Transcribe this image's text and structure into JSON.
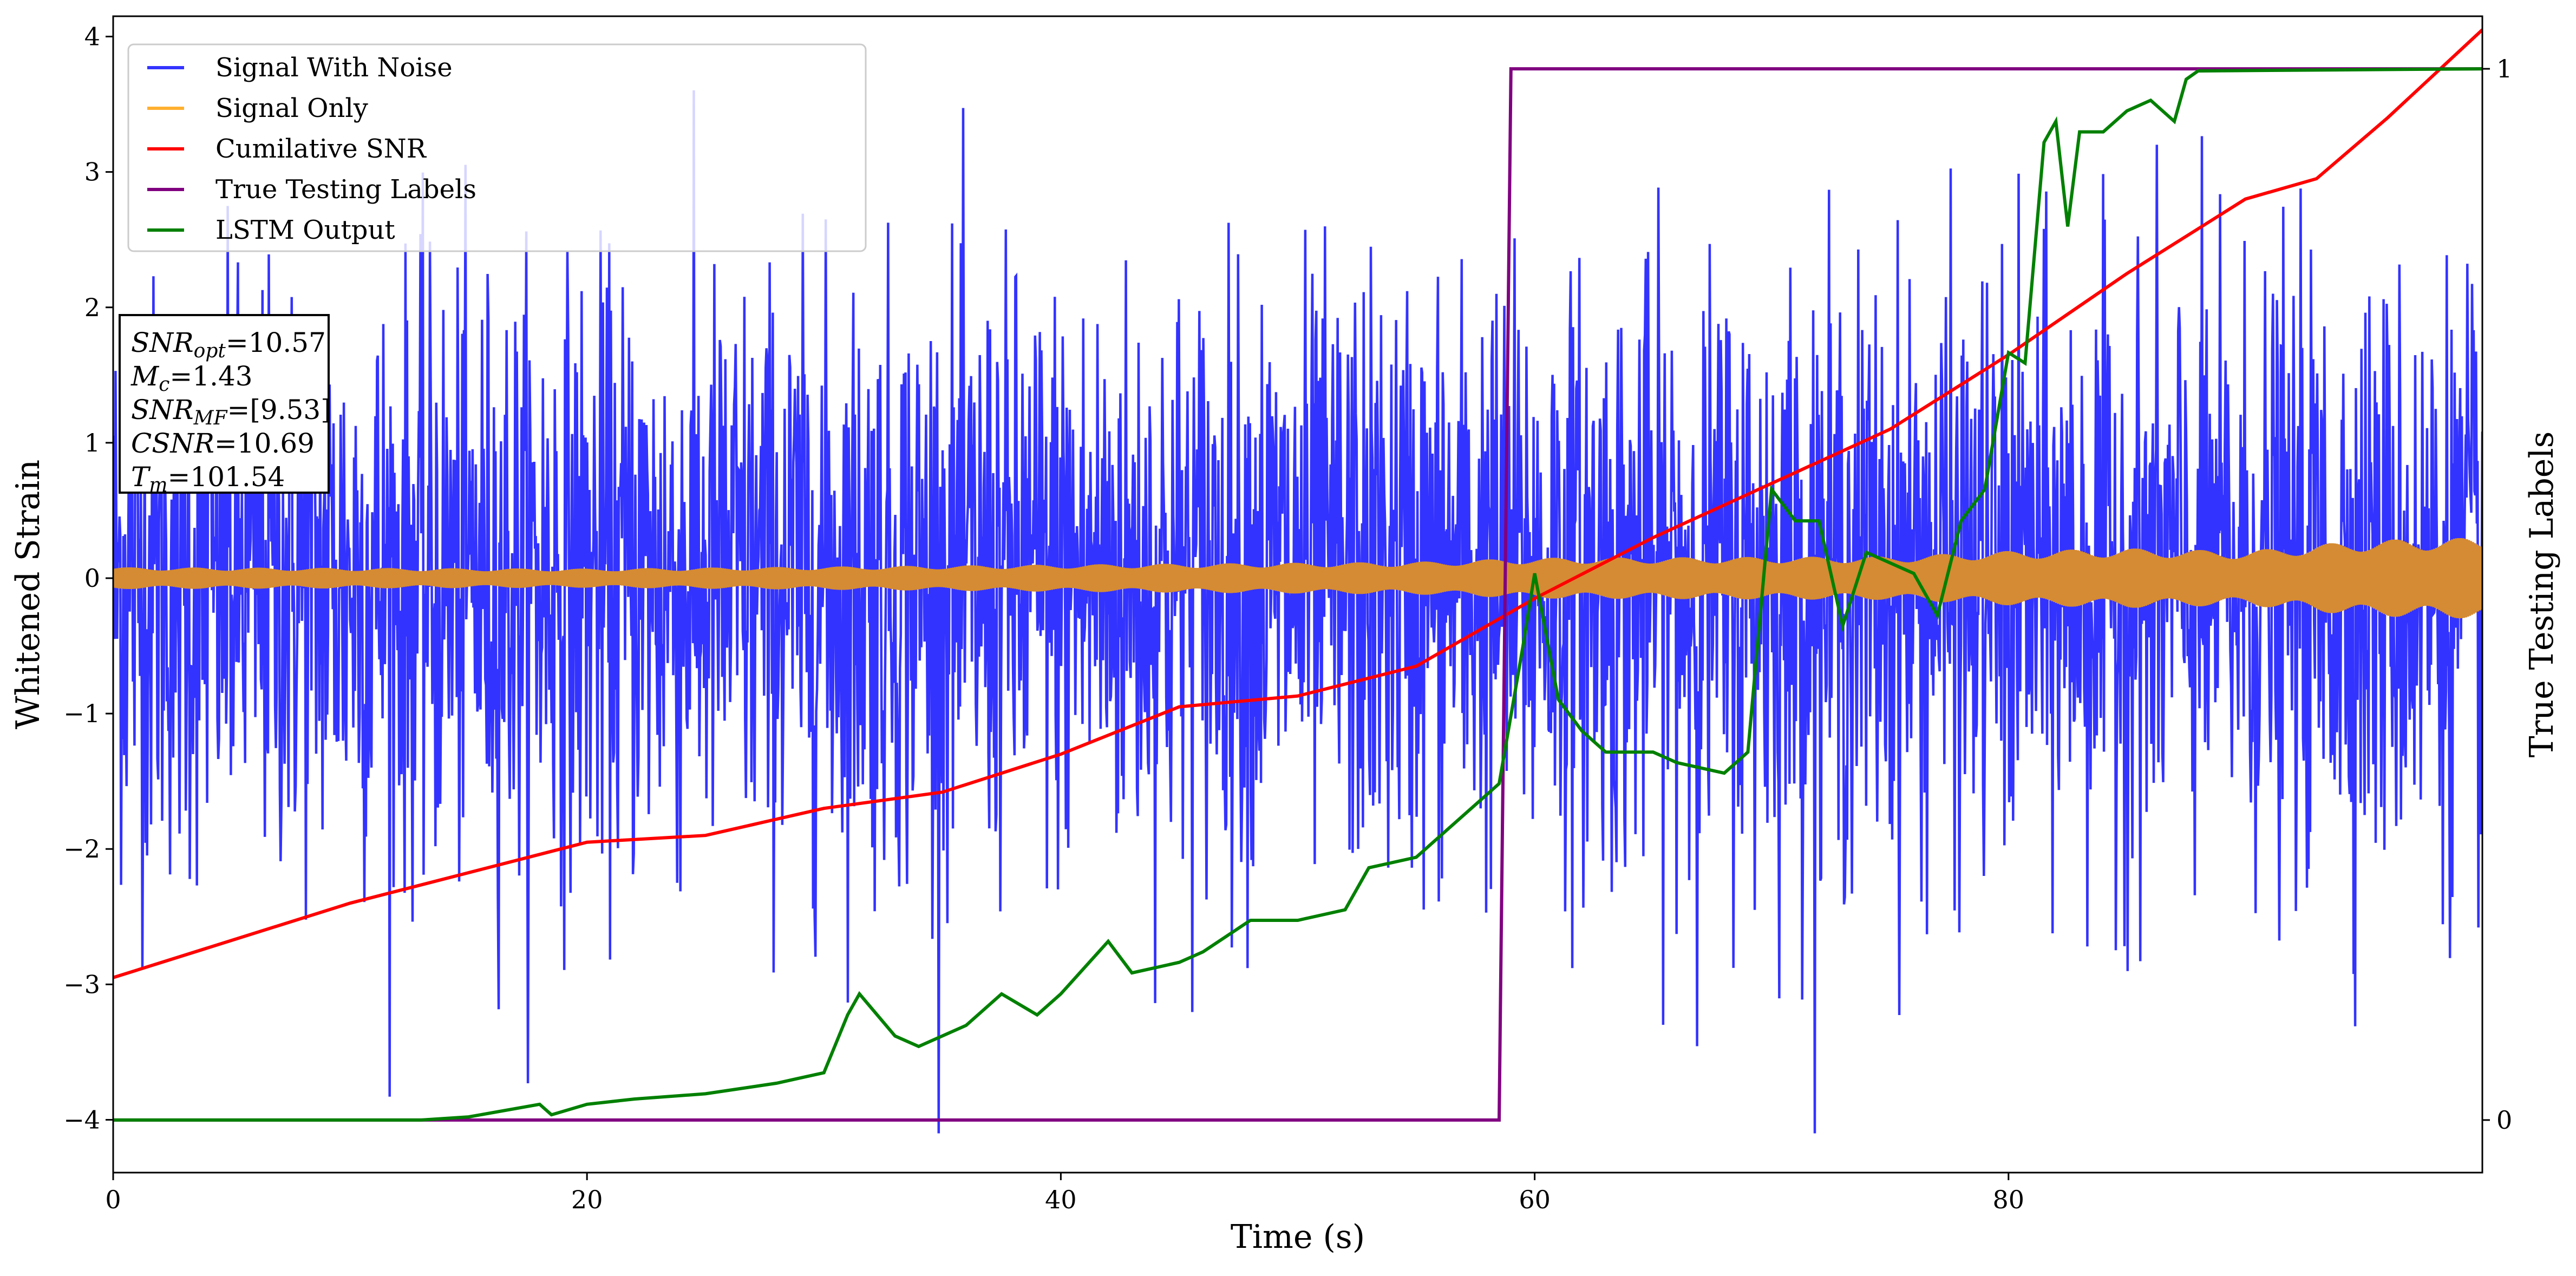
{
  "chart_data": {
    "type": "line",
    "xlabel": "Time (s)",
    "ylabel": "Whitened Strain",
    "ylabel_right": "True Testing Labels",
    "xlim": [
      0,
      100
    ],
    "ylim": [
      -4.39,
      4.15
    ],
    "ylim_right": [
      -0.05,
      1.05
    ],
    "xticks": [
      "0",
      "20",
      "40",
      "60",
      "80"
    ],
    "xtick_values": [
      0,
      20,
      40,
      60,
      80
    ],
    "yticks": [
      "−4",
      "−3",
      "−2",
      "−1",
      "0",
      "1",
      "2",
      "3",
      "4"
    ],
    "ytick_values": [
      -4,
      -3,
      -2,
      -1,
      0,
      1,
      2,
      3,
      4
    ],
    "yticks_right": [
      "0",
      "1"
    ],
    "ytick_right_values": [
      0,
      1
    ],
    "legend_position": "upper-left",
    "legend": [
      "Signal With Noise",
      "Signal Only",
      "Cumilative SNR",
      "True Testing Labels",
      "LSTM Output"
    ],
    "colors": {
      "noise": "#3333ff",
      "signal": "#d58b33",
      "signal_legend": "#ffb030",
      "csnr": "#ff0000",
      "labels": "#800080",
      "lstm": "#008000"
    },
    "series": [
      {
        "name": "Signal With Noise",
        "axis": "left",
        "generated": true,
        "noise_std": 1.0,
        "peak_range": [
          -4.1,
          4.1
        ],
        "samples": 3000
      },
      {
        "name": "Signal Only",
        "axis": "left",
        "amplitude_envelope": {
          "x": [
            0,
            20,
            40,
            55,
            60,
            75,
            80,
            85,
            90,
            95,
            100
          ],
          "y": [
            0.08,
            0.07,
            0.1,
            0.12,
            0.15,
            0.16,
            0.2,
            0.22,
            0.2,
            0.28,
            0.3
          ]
        }
      },
      {
        "name": "Cumilative SNR",
        "axis": "left",
        "x": [
          0,
          10,
          20,
          25,
          30,
          35,
          40,
          45,
          50,
          55,
          58,
          60,
          65,
          70,
          75,
          80,
          85,
          90,
          93,
          96,
          100
        ],
        "y": [
          -2.95,
          -2.4,
          -1.95,
          -1.9,
          -1.7,
          -1.58,
          -1.3,
          -0.95,
          -0.87,
          -0.65,
          -0.35,
          -0.15,
          0.3,
          0.7,
          1.1,
          1.65,
          2.25,
          2.8,
          2.95,
          3.4,
          4.05
        ]
      },
      {
        "name": "True Testing Labels",
        "axis": "right",
        "x": [
          0,
          58.5,
          59,
          100
        ],
        "y": [
          0,
          0,
          1,
          1
        ]
      },
      {
        "name": "LSTM Output",
        "axis": "right",
        "x": [
          0,
          13,
          15,
          18,
          18.5,
          20,
          22,
          25,
          28,
          29,
          30,
          31,
          31.5,
          33,
          34,
          36,
          37.5,
          39,
          40,
          42,
          43,
          45,
          46,
          48,
          50,
          52,
          53,
          55,
          56,
          57.5,
          58.5,
          59.5,
          60,
          61,
          62,
          63,
          65,
          66,
          68,
          69,
          70,
          71,
          72,
          73,
          74,
          76,
          77,
          78,
          79,
          80,
          80.7,
          81.5,
          82,
          82.5,
          83,
          84,
          85,
          86,
          87,
          87.5,
          88,
          100
        ],
        "y": [
          0,
          0,
          0.003,
          0.015,
          0.005,
          0.015,
          0.02,
          0.025,
          0.035,
          0.04,
          0.045,
          0.1,
          0.12,
          0.08,
          0.07,
          0.09,
          0.12,
          0.1,
          0.12,
          0.17,
          0.14,
          0.15,
          0.16,
          0.19,
          0.19,
          0.2,
          0.24,
          0.25,
          0.27,
          0.3,
          0.32,
          0.45,
          0.52,
          0.4,
          0.37,
          0.35,
          0.35,
          0.34,
          0.33,
          0.35,
          0.6,
          0.57,
          0.57,
          0.47,
          0.54,
          0.52,
          0.48,
          0.57,
          0.6,
          0.73,
          0.72,
          0.93,
          0.95,
          0.85,
          0.94,
          0.94,
          0.96,
          0.97,
          0.95,
          0.99,
          0.998,
          1.0
        ]
      }
    ],
    "annotation": {
      "lines": [
        {
          "main": "SNR",
          "sub": "opt",
          "value": "=10.57"
        },
        {
          "main": "M",
          "sub": "c",
          "value": "=1.43"
        },
        {
          "main": "SNR",
          "sub": "MF",
          "value": "=[9.53]"
        },
        {
          "main": "CSNR",
          "sub": "",
          "value": "=10.69"
        },
        {
          "main": "T",
          "sub": "m",
          "value": "=101.54"
        }
      ]
    }
  }
}
